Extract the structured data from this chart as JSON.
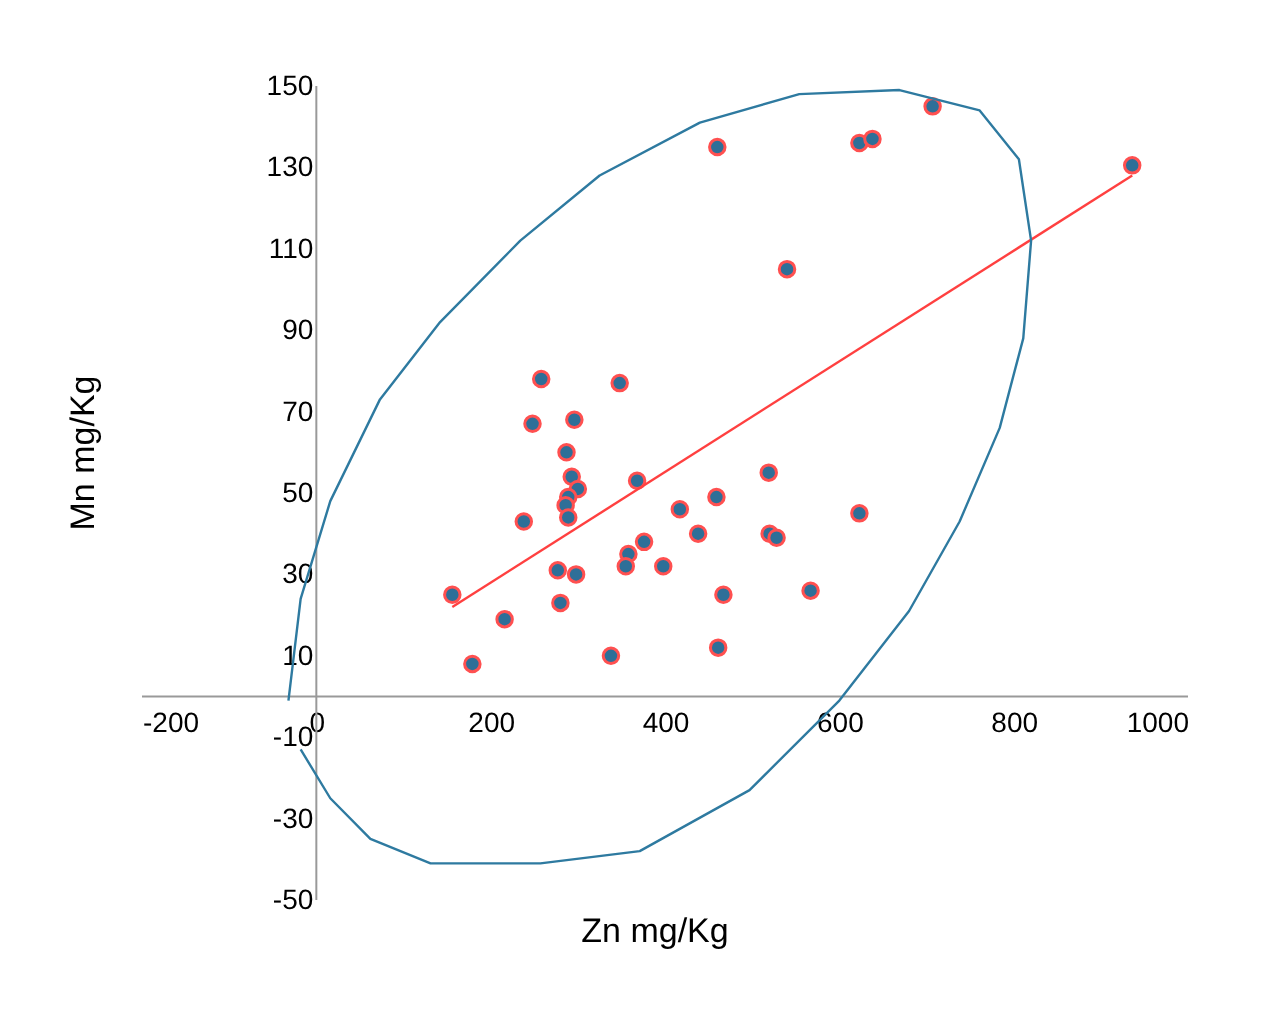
{
  "chart_data": {
    "type": "scatter",
    "xlabel": "Zn mg/Kg",
    "ylabel": "Mn mg/Kg",
    "xlim": [
      -200,
      1000
    ],
    "xticks": [
      -200,
      0,
      200,
      400,
      600,
      800,
      1000
    ],
    "ylim": [
      -50,
      150
    ],
    "yticks": [
      -50,
      -30,
      -10,
      10,
      30,
      50,
      70,
      90,
      110,
      130,
      150
    ],
    "grid": false,
    "marker": "circle",
    "series": [
      {
        "type": "scatter",
        "color": "#2e6f98",
        "x": [
          460,
          540,
          258,
          348,
          248,
          296,
          287,
          293,
          300,
          289,
          286,
          289,
          238,
          368,
          417,
          459,
          438,
          519,
          520,
          528,
          376,
          358,
          355,
          398,
          277,
          298,
          156,
          467,
          280,
          216,
          461,
          338,
          179,
          707,
          623,
          638,
          936,
          623,
          567
        ],
        "values": [
          135,
          105,
          78,
          77,
          67,
          68,
          60,
          54,
          51,
          49,
          47,
          44,
          43,
          53,
          46,
          49,
          40,
          55,
          40,
          39,
          38,
          35,
          32,
          32,
          31,
          30,
          25,
          25,
          23,
          19,
          12,
          10,
          8,
          145,
          136,
          137,
          130.5,
          45,
          26
        ]
      },
      {
        "type": "line",
        "color": "#ff4040",
        "line_style": "solid",
        "marker": "none",
        "x": [
          156,
          936
        ],
        "values": [
          22,
          128
        ]
      },
      {
        "type": "line",
        "color": "#2e7aa0",
        "line_style": "solid",
        "marker": "none",
        "x": [
          -32,
          -18,
          16,
          73,
          142,
          234,
          325,
          440,
          554,
          669,
          761,
          806,
          820,
          811,
          784,
          738,
          680,
          600,
          497,
          371,
          257,
          131,
          62,
          16,
          -18
        ],
        "values": [
          -1,
          24,
          48,
          73,
          92,
          112,
          128,
          141,
          148,
          149,
          144,
          132,
          112,
          88,
          66,
          43,
          21,
          -1,
          -23,
          -38,
          -41,
          -41,
          -35,
          -25,
          -13
        ]
      }
    ]
  }
}
